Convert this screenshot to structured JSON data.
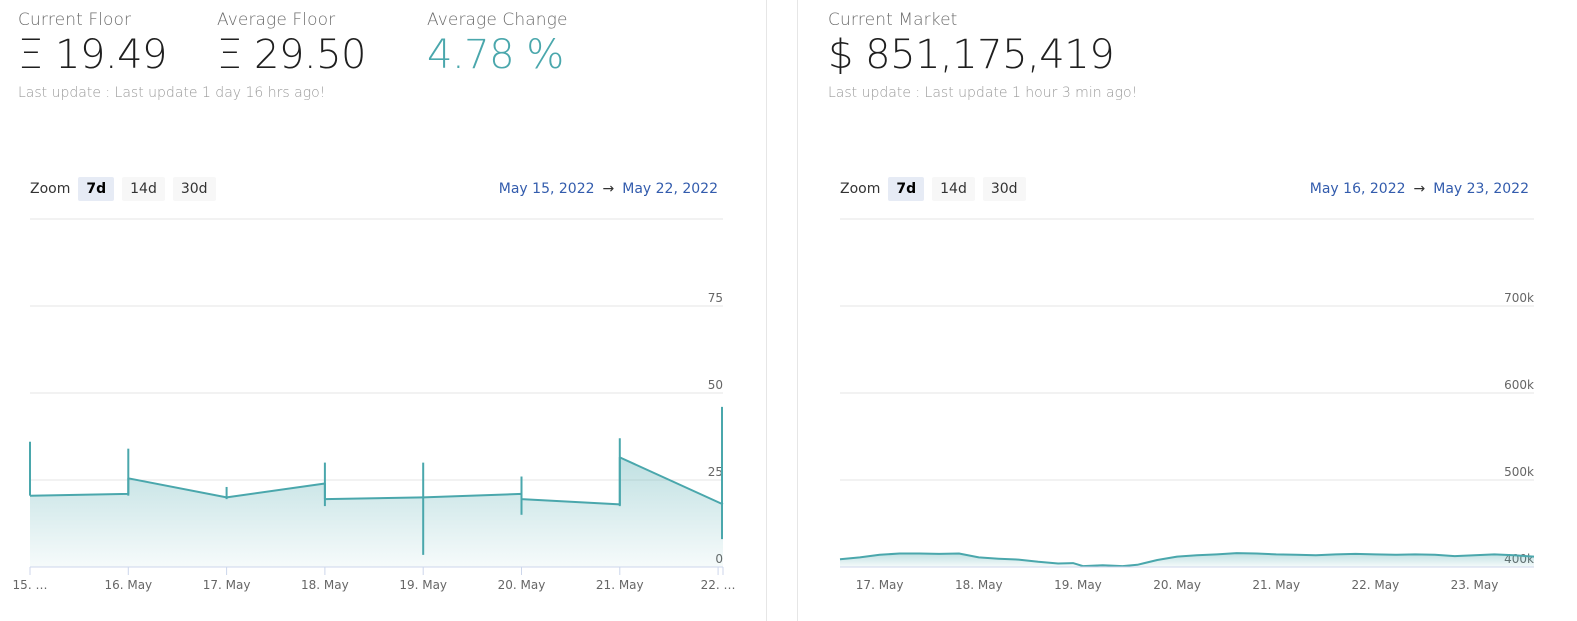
{
  "left": {
    "stats": [
      {
        "label": "Current Floor",
        "value": "Ξ 19.49"
      },
      {
        "label": "Average Floor",
        "value": "Ξ 29.50"
      },
      {
        "label": "Average Change",
        "value": "4.78 %"
      }
    ],
    "update": "Last update : Last update 1 day 16 hrs ago!",
    "zoom": {
      "label": "Zoom",
      "buttons": [
        "7d",
        "14d",
        "30d"
      ],
      "active": "7d"
    },
    "range": {
      "from": "May 15, 2022",
      "arrow": "→",
      "to": "May 22, 2022"
    }
  },
  "right": {
    "stats": [
      {
        "label": "Current Market",
        "value": "$ 851,175,419"
      }
    ],
    "update": "Last update : Last update 1 hour 3 min ago!",
    "zoom": {
      "label": "Zoom",
      "buttons": [
        "7d",
        "14d",
        "30d"
      ],
      "active": "7d"
    },
    "range": {
      "from": "May 16, 2022",
      "arrow": "→",
      "to": "May 23, 2022"
    }
  },
  "colors": {
    "series": "#4aa7ac",
    "range": "#335cad",
    "grid": "#e6e6e6"
  },
  "chart_data": [
    {
      "type": "area",
      "title": "",
      "xlabel": "",
      "ylabel": "",
      "ylim": [
        0,
        100
      ],
      "xlim": [
        0,
        7.05
      ],
      "y_ticks": [
        0,
        25,
        50,
        75
      ],
      "x_ticks": [
        {
          "x": 0,
          "label": "15. …"
        },
        {
          "x": 1,
          "label": "16. May"
        },
        {
          "x": 2,
          "label": "17. May"
        },
        {
          "x": 3,
          "label": "18. May"
        },
        {
          "x": 4,
          "label": "19. May"
        },
        {
          "x": 5,
          "label": "20. May"
        },
        {
          "x": 6,
          "label": "21. May"
        },
        {
          "x": 7,
          "label": "22. …"
        }
      ],
      "grid": true,
      "series": [
        {
          "points": [
            [
              0,
              20.5
            ],
            [
              1,
              21
            ],
            [
              1,
              25.5
            ],
            [
              2,
              20
            ],
            [
              3,
              24
            ],
            [
              3,
              19.5
            ],
            [
              4,
              20
            ],
            [
              5,
              21
            ],
            [
              5,
              19.5
            ],
            [
              6,
              18
            ],
            [
              6,
              31.5
            ],
            [
              7.05,
              18
            ]
          ],
          "spikes": [
            [
              0,
              36,
              20.5
            ],
            [
              1,
              34,
              20.5
            ],
            [
              2,
              23,
              19.5
            ],
            [
              3,
              30,
              17.5
            ],
            [
              4,
              30,
              3.5
            ],
            [
              5,
              26,
              15
            ],
            [
              6,
              37,
              17.5
            ],
            [
              7.05,
              46,
              8
            ]
          ]
        }
      ]
    },
    {
      "type": "area",
      "title": "",
      "xlabel": "",
      "ylabel": "",
      "ylim": [
        400000,
        800000
      ],
      "xlim": [
        -0.4,
        6.6
      ],
      "y_ticks": [
        400000,
        500000,
        600000,
        700000
      ],
      "y_tick_labels": [
        "400k",
        "500k",
        "600k",
        "700k"
      ],
      "x_ticks": [
        {
          "x": 0,
          "label": "17. May"
        },
        {
          "x": 1,
          "label": "18. May"
        },
        {
          "x": 2,
          "label": "19. May"
        },
        {
          "x": 3,
          "label": "20. May"
        },
        {
          "x": 4,
          "label": "21. May"
        },
        {
          "x": 5,
          "label": "22. May"
        },
        {
          "x": 6,
          "label": "23. May"
        }
      ],
      "grid": true,
      "series": [
        {
          "points": [
            [
              -0.4,
              409000
            ],
            [
              -0.2,
              411000
            ],
            [
              0,
              414000
            ],
            [
              0.2,
              415500
            ],
            [
              0.4,
              415500
            ],
            [
              0.6,
              415000
            ],
            [
              0.8,
              415500
            ],
            [
              1,
              411000
            ],
            [
              1.2,
              409500
            ],
            [
              1.4,
              408500
            ],
            [
              1.6,
              406000
            ],
            [
              1.8,
              404000
            ],
            [
              1.95,
              404500
            ],
            [
              2.05,
              401000
            ],
            [
              2.25,
              402000
            ],
            [
              2.45,
              401000
            ],
            [
              2.6,
              402500
            ],
            [
              2.8,
              408000
            ],
            [
              3,
              412000
            ],
            [
              3.2,
              413500
            ],
            [
              3.4,
              414500
            ],
            [
              3.6,
              416000
            ],
            [
              3.8,
              415500
            ],
            [
              4,
              414500
            ],
            [
              4.2,
              414000
            ],
            [
              4.4,
              413500
            ],
            [
              4.6,
              414500
            ],
            [
              4.8,
              415000
            ],
            [
              5,
              414500
            ],
            [
              5.2,
              414000
            ],
            [
              5.4,
              414500
            ],
            [
              5.6,
              414000
            ],
            [
              5.8,
              412500
            ],
            [
              6,
              413500
            ],
            [
              6.2,
              414500
            ],
            [
              6.4,
              413500
            ],
            [
              6.6,
              412000
            ]
          ]
        }
      ]
    }
  ]
}
